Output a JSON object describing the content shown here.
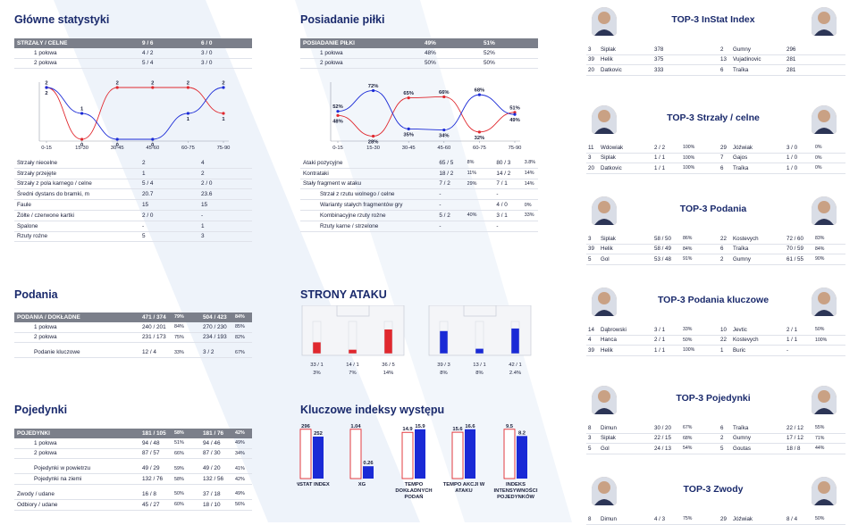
{
  "sections": {
    "main_stats": "Główne statystyki",
    "possession": "Posiadanie piłki",
    "passes": "Podania",
    "attack_sides": "STRONY ATAKU",
    "duels": "Pojedynki",
    "key_indexes": "Kluczowe indeksy występu"
  },
  "shots_table": {
    "header": [
      "STRZAŁY / CELNE",
      "9 / 6",
      "6 / 0"
    ],
    "rows": [
      [
        "1 połowa",
        "4 / 2",
        "3 / 0"
      ],
      [
        "2 połowa",
        "5 / 4",
        "3 / 0"
      ]
    ]
  },
  "shots_chart": {
    "type": "line",
    "x": [
      "0-15",
      "15-30",
      "30-45",
      "45-60",
      "60-75",
      "75-90"
    ],
    "series": [
      {
        "color": "#e0282e",
        "values": [
          2,
          0,
          2,
          2,
          2,
          1
        ]
      },
      {
        "color": "#1a2ad6",
        "values": [
          2,
          1,
          0,
          0,
          1,
          2
        ]
      }
    ]
  },
  "main_table": {
    "rows": [
      [
        "Strzały niecelne",
        "2",
        "4"
      ],
      [
        "Strzały przejęte",
        "1",
        "2"
      ],
      [
        "Strzały z pola karnego / celne",
        "5 / 4",
        "2 / 0"
      ],
      [
        "Średni dystans do bramki, m",
        "20.7",
        "23.6"
      ],
      [
        "Faule",
        "15",
        "15"
      ],
      [
        "Żółte / czerwone kartki",
        "2 / 0",
        "-"
      ],
      [
        "Spalone",
        "-",
        "1"
      ],
      [
        "Rzuty rożne",
        "5",
        "3"
      ]
    ]
  },
  "possession_table": {
    "header": [
      "POSIADANIE PIŁKI",
      "49%",
      "51%"
    ],
    "rows": [
      [
        "1 połowa",
        "48%",
        "52%"
      ],
      [
        "2 połowa",
        "50%",
        "50%"
      ]
    ]
  },
  "possession_chart": {
    "type": "line",
    "x": [
      "0-15",
      "15-30",
      "30-45",
      "45-60",
      "60-75",
      "75-90"
    ],
    "series": [
      {
        "color": "#e0282e",
        "values": [
          48,
          28,
          65,
          66,
          32,
          51
        ],
        "labels": [
          "48%",
          "28%",
          "65%",
          "66%",
          "32%",
          "51%"
        ]
      },
      {
        "color": "#1a2ad6",
        "values": [
          52,
          72,
          35,
          34,
          68,
          49
        ],
        "labels": [
          "52%",
          "72%",
          "35%",
          "34%",
          "68%",
          "49%"
        ]
      }
    ]
  },
  "attack_table": {
    "rows": [
      {
        "label": "Ataki pozycyjne",
        "a": "65 / 5",
        "ap": "8%",
        "b": "80 / 3",
        "bp": "3.8%",
        "sub": false
      },
      {
        "label": "Kontrataki",
        "a": "18 / 2",
        "ap": "11%",
        "b": "14 / 2",
        "bp": "14%",
        "sub": false
      },
      {
        "label": "Stały fragment w ataku",
        "a": "7 / 2",
        "ap": "29%",
        "b": "7 / 1",
        "bp": "14%",
        "sub": false
      },
      {
        "label": "Strzał z rzutu wolnego / celne",
        "a": "-",
        "ap": "",
        "b": "-",
        "bp": "",
        "sub": true
      },
      {
        "label": "Warianty stałych fragmentów gry",
        "a": "-",
        "ap": "",
        "b": "4 / 0",
        "bp": "0%",
        "sub": true
      },
      {
        "label": "Kombinacyjne rzuty rożne",
        "a": "5 / 2",
        "ap": "40%",
        "b": "3 / 1",
        "bp": "33%",
        "sub": true
      },
      {
        "label": "Rzuty karne / strzelone",
        "a": "-",
        "ap": "",
        "b": "-",
        "bp": "",
        "sub": true
      }
    ]
  },
  "passes_table": {
    "header": {
      "label": "PODANIA / DOKŁADNE",
      "a": "471 / 374",
      "ap": "79%",
      "b": "504 / 423",
      "bp": "84%"
    },
    "rows": [
      {
        "label": "1 połowa",
        "a": "240 / 201",
        "ap": "84%",
        "b": "270 / 230",
        "bp": "85%",
        "sub": true
      },
      {
        "label": "2 połowa",
        "a": "231 / 173",
        "ap": "75%",
        "b": "234 / 193",
        "bp": "82%",
        "sub": true
      },
      {
        "label": "Podanie kluczowe",
        "a": "12 / 4",
        "ap": "33%",
        "b": "3 / 2",
        "bp": "67%",
        "sub": true,
        "gap": true
      }
    ]
  },
  "attack_sides": {
    "team_a": [
      {
        "value": "33 / 1",
        "pct": "3%",
        "fill": 0.35
      },
      {
        "value": "14 / 1",
        "pct": "7%",
        "fill": 0.12
      },
      {
        "value": "36 / 5",
        "pct": "14%",
        "fill": 0.75
      }
    ],
    "team_b": [
      {
        "value": "39 / 3",
        "pct": "8%",
        "fill": 0.7
      },
      {
        "value": "13 / 1",
        "pct": "8%",
        "fill": 0.15
      },
      {
        "value": "42 / 1",
        "pct": "2.4%",
        "fill": 0.78
      }
    ]
  },
  "duels_table": {
    "header": {
      "label": "POJEDYNKI",
      "a": "181 / 105",
      "ap": "58%",
      "b": "181 / 76",
      "bp": "42%"
    },
    "rows": [
      {
        "label": "1 połowa",
        "a": "94 / 48",
        "ap": "51%",
        "b": "94 / 46",
        "bp": "49%",
        "sub": true
      },
      {
        "label": "2 połowa",
        "a": "87 / 57",
        "ap": "66%",
        "b": "87 / 30",
        "bp": "34%",
        "sub": true
      },
      {
        "label": "Pojedynki w powietrzu",
        "a": "49 / 29",
        "ap": "59%",
        "b": "49 / 20",
        "bp": "41%",
        "sub": true,
        "gap": true
      },
      {
        "label": "Pojedynki na ziemi",
        "a": "132 / 76",
        "ap": "58%",
        "b": "132 / 56",
        "bp": "42%",
        "sub": true
      },
      {
        "label": "Zwody / udane",
        "a": "16 / 8",
        "ap": "50%",
        "b": "37 / 18",
        "bp": "49%",
        "sub": false,
        "gap": true
      },
      {
        "label": "Odbiory / udane",
        "a": "45 / 27",
        "ap": "60%",
        "b": "18 / 10",
        "bp": "56%",
        "sub": false
      }
    ]
  },
  "chart_data": {
    "type": "bar",
    "categories": [
      "INSTAT INDEX",
      "XG",
      "TEMPO DOKŁADNYCH PODAŃ",
      "TEMPO AKCJI W ATAKU",
      "INDEKS INTENSYWNOŚCI POJEDYNKÓW"
    ],
    "series": [
      {
        "color": "#e0282e",
        "values": [
          296,
          1.04,
          14.9,
          15.6,
          9.5
        ],
        "labels": [
          "296",
          "1.04",
          "14.9",
          "15.6",
          "9.5"
        ]
      },
      {
        "color": "#1a2ad6",
        "values": [
          252,
          0.26,
          15.9,
          16.6,
          8.2
        ],
        "labels": [
          "252",
          "0.26",
          "15.9",
          "16.6",
          "8.2"
        ]
      }
    ]
  },
  "top_tables": [
    {
      "title": "TOP-3 InStat Index",
      "rows": [
        [
          "3",
          "Siplak",
          "378",
          "",
          "2",
          "Gumny",
          "296",
          ""
        ],
        [
          "39",
          "Helik",
          "375",
          "",
          "13",
          "Vujadinovic",
          "281",
          ""
        ],
        [
          "20",
          "Datkovic",
          "333",
          "",
          "6",
          "Traïka",
          "281",
          ""
        ]
      ]
    },
    {
      "title": "TOP-3 Strzały / celne",
      "rows": [
        [
          "11",
          "Wdowiak",
          "2 / 2",
          "100%",
          "29",
          "Jóźwiak",
          "3 / 0",
          "0%"
        ],
        [
          "3",
          "Siplak",
          "1 / 1",
          "100%",
          "7",
          "Gajos",
          "1 / 0",
          "0%"
        ],
        [
          "20",
          "Datkovic",
          "1 / 1",
          "100%",
          "6",
          "Traïka",
          "1 / 0",
          "0%"
        ]
      ]
    },
    {
      "title": "TOP-3 Podania",
      "rows": [
        [
          "3",
          "Siplak",
          "58 / 50",
          "86%",
          "22",
          "Kostevych",
          "72 / 60",
          "83%"
        ],
        [
          "39",
          "Helik",
          "58 / 49",
          "84%",
          "6",
          "Traïka",
          "70 / 59",
          "84%"
        ],
        [
          "5",
          "Gol",
          "53 / 48",
          "91%",
          "2",
          "Gumny",
          "61 / 55",
          "90%"
        ]
      ]
    },
    {
      "title": "TOP-3 Podania kluczowe",
      "rows": [
        [
          "14",
          "Dąbrowski",
          "3 / 1",
          "33%",
          "10",
          "Jevtic",
          "2 / 1",
          "50%"
        ],
        [
          "4",
          "Hanca",
          "2 / 1",
          "50%",
          "22",
          "Kostevych",
          "1 / 1",
          "100%"
        ],
        [
          "39",
          "Helik",
          "1 / 1",
          "100%",
          "1",
          "Buric",
          "-",
          ""
        ]
      ]
    },
    {
      "title": "TOP-3 Pojedynki",
      "rows": [
        [
          "8",
          "Dimun",
          "30 / 20",
          "67%",
          "6",
          "Traïka",
          "22 / 12",
          "55%"
        ],
        [
          "3",
          "Siplak",
          "22 / 15",
          "68%",
          "2",
          "Gumny",
          "17 / 12",
          "71%"
        ],
        [
          "5",
          "Gol",
          "24 / 13",
          "54%",
          "5",
          "Goutas",
          "18 / 8",
          "44%"
        ]
      ]
    },
    {
      "title": "TOP-3 Zwody",
      "rows": [
        [
          "8",
          "Dimun",
          "4 / 3",
          "75%",
          "29",
          "Jóźwiak",
          "8 / 4",
          "50%"
        ]
      ]
    }
  ]
}
